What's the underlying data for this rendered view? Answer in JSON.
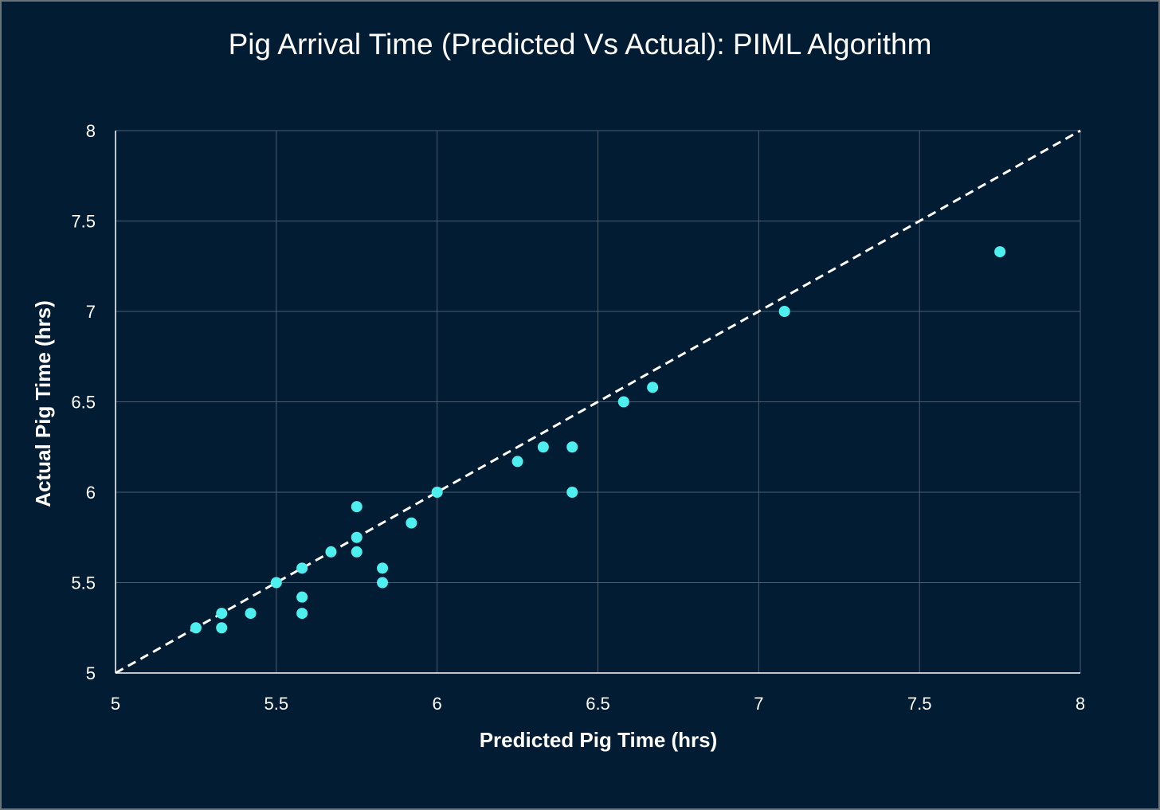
{
  "chart_data": {
    "type": "scatter",
    "title": "Pig Arrival Time (Predicted Vs Actual): PIML Algorithm",
    "xlabel": "Predicted Pig Time (hrs)",
    "ylabel": "Actual Pig Time (hrs)",
    "xlim": [
      5,
      8
    ],
    "ylim": [
      5,
      8
    ],
    "xticks": [
      "5",
      "5.5",
      "6",
      "6.5",
      "7",
      "7.5",
      "8"
    ],
    "yticks": [
      "5",
      "5.5",
      "6",
      "6.5",
      "7",
      "7.5",
      "8"
    ],
    "grid": true,
    "reference_line": {
      "style": "dashed",
      "from": [
        5,
        5
      ],
      "to": [
        8,
        8
      ],
      "color": "#ffffff"
    },
    "marker_color": "#4df0ee",
    "points": [
      {
        "x": 5.25,
        "y": 5.25
      },
      {
        "x": 5.33,
        "y": 5.33
      },
      {
        "x": 5.33,
        "y": 5.25
      },
      {
        "x": 5.42,
        "y": 5.33
      },
      {
        "x": 5.5,
        "y": 5.5
      },
      {
        "x": 5.58,
        "y": 5.58
      },
      {
        "x": 5.58,
        "y": 5.42
      },
      {
        "x": 5.58,
        "y": 5.33
      },
      {
        "x": 5.67,
        "y": 5.67
      },
      {
        "x": 5.75,
        "y": 5.92
      },
      {
        "x": 5.75,
        "y": 5.75
      },
      {
        "x": 5.75,
        "y": 5.67
      },
      {
        "x": 5.83,
        "y": 5.58
      },
      {
        "x": 5.83,
        "y": 5.5
      },
      {
        "x": 5.92,
        "y": 5.83
      },
      {
        "x": 6.0,
        "y": 6.0
      },
      {
        "x": 6.25,
        "y": 6.17
      },
      {
        "x": 6.33,
        "y": 6.25
      },
      {
        "x": 6.42,
        "y": 6.25
      },
      {
        "x": 6.42,
        "y": 6.0
      },
      {
        "x": 6.58,
        "y": 6.5
      },
      {
        "x": 6.67,
        "y": 6.58
      },
      {
        "x": 7.08,
        "y": 7.0
      },
      {
        "x": 7.75,
        "y": 7.33
      }
    ]
  },
  "colors": {
    "background": "#021c33",
    "gridline": "#4a5d70",
    "axis": "#ffffff",
    "text": "#ffffff"
  }
}
